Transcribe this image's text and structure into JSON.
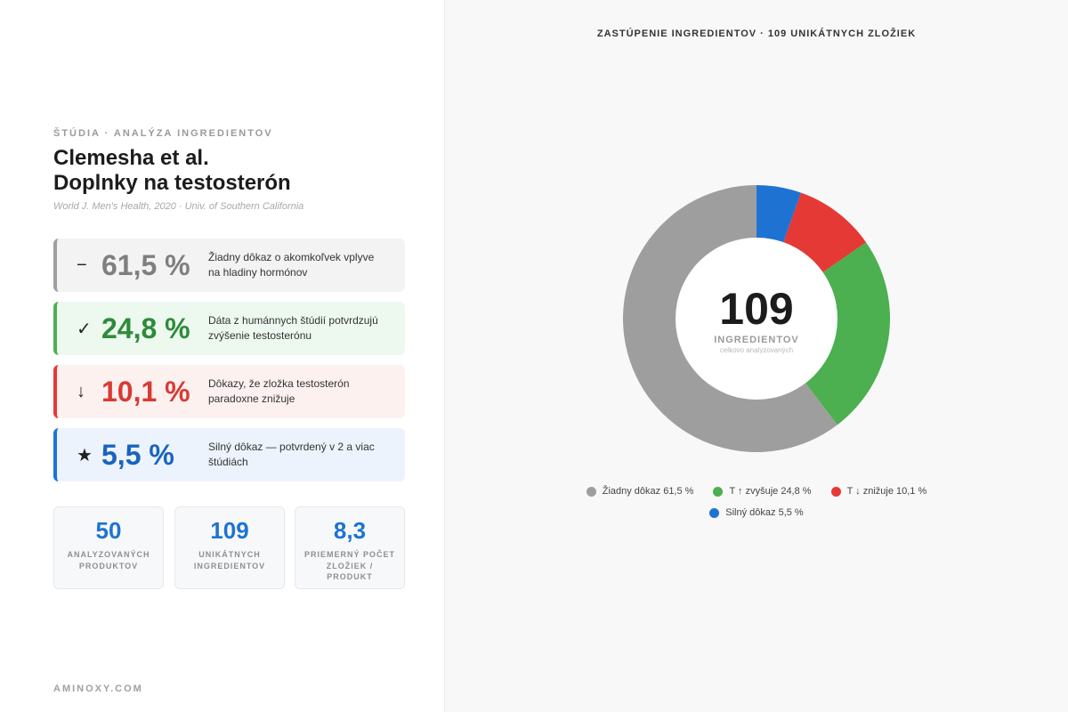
{
  "left": {
    "eyebrow": "ŠTÚDIA · ANALÝZA INGREDIENTOV",
    "title_line1": "Clemesha et al.",
    "title_line2": "Doplnky na testosterón",
    "citation": "World J. Men's Health, 2020 · Univ. of Southern California",
    "cards": [
      {
        "symbol": "−",
        "pct": "61,5 %",
        "desc": "Žiadny dôkaz o akomkoľvek vplyve na hladiny hormónov",
        "color": "#9e9e9e"
      },
      {
        "symbol": "✓",
        "pct": "24,8 %",
        "desc": "Dáta z humánnych štúdií potvrdzujú zvýšenie testosterónu",
        "color": "#4caf50"
      },
      {
        "symbol": "↓",
        "pct": "10,1 %",
        "desc": "Dôkazy, že zložka testosterón paradoxne znižuje",
        "color": "#e53935"
      },
      {
        "symbol": "★",
        "pct": "5,5 %",
        "desc": "Silný dôkaz — potvrdený v 2 a viac štúdiách",
        "color": "#1e73d2"
      }
    ],
    "mini_stats": [
      {
        "num": "50",
        "label": "ANALYZOVANÝCH PRODUKTOV"
      },
      {
        "num": "109",
        "label": "UNIKÁTNYCH INGREDIENTOV"
      },
      {
        "num": "8,3",
        "label": "PRIEMERNÝ POČET ZLOŽIEK / PRODUKT"
      }
    ],
    "footer": "AMINOXY.COM"
  },
  "chart_data": {
    "type": "pie",
    "title": "ZASTÚPENIE INGREDIENTOV · 109 UNIKÁTNYCH ZLOŽIEK",
    "center_value": "109",
    "center_label": "INGREDIENTOV",
    "center_sublabel": "celkovo analyzovaných",
    "slices": [
      {
        "label": "Žiadny dôkaz 61,5 %",
        "value": 61.5,
        "color": "#9e9e9e"
      },
      {
        "label": "T ↑ zvyšuje 24,8 %",
        "value": 24.8,
        "color": "#4caf50"
      },
      {
        "label": "T ↓ znižuje 10,1 %",
        "value": 10.1,
        "color": "#e53935"
      },
      {
        "label": "Silný dôkaz 5,5 %",
        "value": 5.5,
        "color": "#1e73d2"
      }
    ]
  }
}
